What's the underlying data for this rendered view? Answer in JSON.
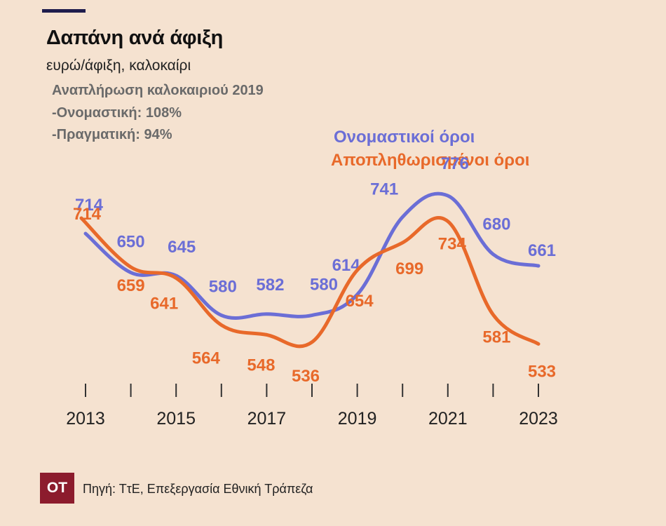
{
  "header": {
    "title": "Δαπάνη ανά άφιξη",
    "subtitle": "ευρώ/άφιξη, καλοκαίρι"
  },
  "notes": [
    "Αναπλήρωση καλοκαιριού 2019",
    "-Ονομαστική: 108%",
    "-Πραγματική: 94%"
  ],
  "legend": {
    "nominal": "Ονομαστικοί όροι",
    "deflated": "Αποπληθωρισμένοι όροι"
  },
  "colors": {
    "nominal": "#6b6ed6",
    "deflated": "#e8692a",
    "background": "#f5e2d0"
  },
  "chart_data": {
    "type": "line",
    "x": [
      2013,
      2014,
      2015,
      2016,
      2017,
      2018,
      2019,
      2020,
      2021,
      2022,
      2023
    ],
    "x_tick_labels": [
      "2013",
      "2015",
      "2017",
      "2019",
      "2021",
      "2023"
    ],
    "ylim": [
      500,
      800
    ],
    "grid": false,
    "series": [
      {
        "name": "Ονομαστικοί όροι",
        "key": "nominal",
        "values": [
          714,
          650,
          645,
          580,
          582,
          580,
          614,
          741,
          776,
          680,
          661
        ]
      },
      {
        "name": "Αποπληθωρισμένοι όροι",
        "key": "deflated",
        "values": [
          714,
          659,
          641,
          564,
          548,
          536,
          654,
          699,
          734,
          581,
          533
        ]
      }
    ]
  },
  "footer": {
    "logo": "OT",
    "source": "Πηγή: ΤτΕ, Επεξεργασία Εθνική Τράπεζα"
  }
}
